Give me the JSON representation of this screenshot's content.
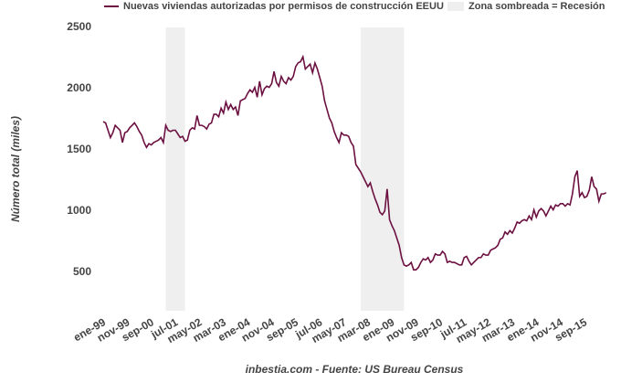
{
  "chart_data": {
    "type": "line",
    "y_label": "Número total (miles)",
    "source": "inbestia.com - Fuente: US Bureau Census",
    "shade_label": "Zona sombreada = Recesión",
    "shade_color": "#efefef",
    "recessions": [
      [
        26,
        34
      ],
      [
        107,
        125
      ]
    ],
    "categories": [
      "ene-99",
      null,
      null,
      null,
      null,
      null,
      null,
      null,
      null,
      null,
      "nov-99",
      null,
      null,
      null,
      null,
      null,
      null,
      null,
      null,
      null,
      "sep-00",
      null,
      null,
      null,
      null,
      null,
      null,
      null,
      null,
      null,
      "jul-01",
      null,
      null,
      null,
      null,
      null,
      null,
      null,
      null,
      null,
      "may-02",
      null,
      null,
      null,
      null,
      null,
      null,
      null,
      null,
      null,
      "mar-03",
      null,
      null,
      null,
      null,
      null,
      null,
      null,
      null,
      null,
      "ene-04",
      null,
      null,
      null,
      null,
      null,
      null,
      null,
      null,
      null,
      "nov-04",
      null,
      null,
      null,
      null,
      null,
      null,
      null,
      null,
      null,
      "sep-05",
      null,
      null,
      null,
      null,
      null,
      null,
      null,
      null,
      null,
      "jul-06",
      null,
      null,
      null,
      null,
      null,
      null,
      null,
      null,
      null,
      "may-07",
      null,
      null,
      null,
      null,
      null,
      null,
      null,
      null,
      null,
      "mar-08",
      null,
      null,
      null,
      null,
      null,
      null,
      null,
      null,
      null,
      "ene-09",
      null,
      null,
      null,
      null,
      null,
      null,
      null,
      null,
      null,
      "nov-09",
      null,
      null,
      null,
      null,
      null,
      null,
      null,
      null,
      null,
      "sep-10",
      null,
      null,
      null,
      null,
      null,
      null,
      null,
      null,
      null,
      "jul-11",
      null,
      null,
      null,
      null,
      null,
      null,
      null,
      null,
      null,
      "may-12",
      null,
      null,
      null,
      null,
      null,
      null,
      null,
      null,
      null,
      "mar-13",
      null,
      null,
      null,
      null,
      null,
      null,
      null,
      null,
      null,
      "ene-14",
      null,
      null,
      null,
      null,
      null,
      null,
      null,
      null,
      null,
      "nov-14",
      null,
      null,
      null,
      null,
      null,
      null,
      null,
      null,
      null,
      "sep-15",
      null,
      null,
      null,
      null,
      null,
      null,
      null,
      null,
      null
    ],
    "series": [
      {
        "name": "Nuevas viviendas autorizadas por permisos de construcción EEUU",
        "color": "#6b1040",
        "values": [
          1730,
          1720,
          1660,
          1600,
          1640,
          1700,
          1680,
          1660,
          1560,
          1640,
          1650,
          1680,
          1700,
          1720,
          1690,
          1650,
          1620,
          1560,
          1520,
          1550,
          1540,
          1560,
          1570,
          1580,
          1600,
          1560,
          1700,
          1660,
          1650,
          1660,
          1660,
          1630,
          1600,
          1610,
          1570,
          1580,
          1660,
          1680,
          1670,
          1780,
          1700,
          1700,
          1690,
          1670,
          1710,
          1720,
          1790,
          1790,
          1770,
          1840,
          1800,
          1890,
          1830,
          1870,
          1830,
          1850,
          1780,
          1900,
          1910,
          1920,
          1960,
          1990,
          1970,
          2010,
          1930,
          2060,
          1950,
          2000,
          2020,
          2010,
          2040,
          2140,
          2050,
          2020,
          2100,
          2060,
          2040,
          2090,
          2070,
          2100,
          2180,
          2210,
          2220,
          2260,
          2160,
          2180,
          2200,
          2130,
          2210,
          2160,
          2090,
          2020,
          1900,
          1830,
          1760,
          1720,
          1650,
          1600,
          1560,
          1640,
          1620,
          1620,
          1610,
          1560,
          1530,
          1380,
          1350,
          1320,
          1280,
          1240,
          1200,
          1230,
          1160,
          1100,
          1050,
          990,
          970,
          1000,
          1180,
          930,
          880,
          840,
          780,
          720,
          620,
          560,
          550,
          560,
          580,
          520,
          520,
          540,
          580,
          610,
          600,
          620,
          580,
          600,
          650,
          640,
          640,
          670,
          650,
          580,
          590,
          580,
          580,
          570,
          560,
          560,
          620,
          630,
          590,
          560,
          580,
          600,
          620,
          620,
          650,
          640,
          640,
          680,
          690,
          700,
          720,
          770,
          780,
          830,
          810,
          840,
          820,
          860,
          910,
          900,
          920,
          930,
          920,
          960,
          930,
          1010,
          950,
          1000,
          1020,
          1000,
          960,
          1000,
          1040,
          1010,
          1050,
          1040,
          1060,
          1060,
          1040,
          1060,
          1050,
          1140,
          1280,
          1330,
          1120,
          1150,
          1110,
          1120,
          1170,
          1280,
          1200,
          1180,
          1080,
          1140,
          1140,
          1150
        ]
      }
    ],
    "ylim": [
      200,
      2500
    ],
    "yticks": [
      500,
      1000,
      1500,
      2000,
      2500
    ],
    "grid": false
  }
}
